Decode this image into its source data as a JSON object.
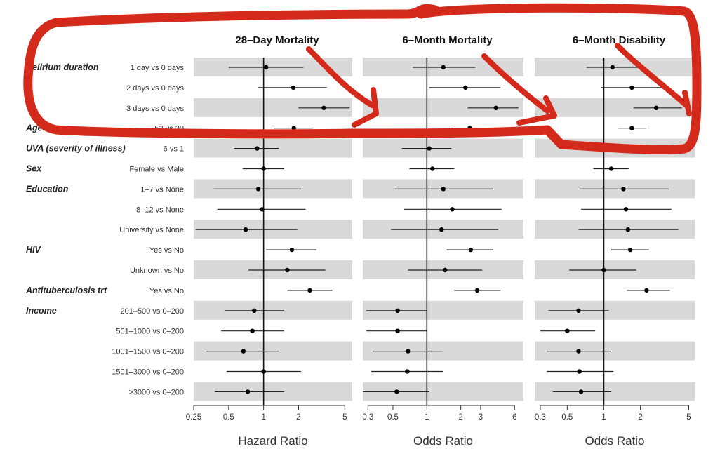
{
  "chart_data": {
    "type": "forest",
    "rows": [
      {
        "variable": "Delirium duration",
        "level": "1 day vs 0 days"
      },
      {
        "variable": "",
        "level": "2 days vs 0 days"
      },
      {
        "variable": "",
        "level": "3 days vs 0 days"
      },
      {
        "variable": "Age",
        "level": "52 vs 30"
      },
      {
        "variable": "UVA (severity of illness)",
        "level": "6 vs 1"
      },
      {
        "variable": "Sex",
        "level": "Female vs Male"
      },
      {
        "variable": "Education",
        "level": "1–7 vs None"
      },
      {
        "variable": "",
        "level": "8–12 vs None"
      },
      {
        "variable": "",
        "level": "University vs None"
      },
      {
        "variable": "HIV",
        "level": "Yes vs No"
      },
      {
        "variable": "",
        "level": "Unknown vs No"
      },
      {
        "variable": "Antituberculosis trt",
        "level": "Yes vs No"
      },
      {
        "variable": "Income",
        "level": "201–500 vs 0–200"
      },
      {
        "variable": "",
        "level": "501–1000 vs 0–200"
      },
      {
        "variable": "",
        "level": "1001–1500 vs 0–200"
      },
      {
        "variable": "",
        "level": "1501–3000 vs 0–200"
      },
      {
        "variable": "",
        "level": ">3000 vs 0–200"
      }
    ],
    "panels": [
      {
        "title": "28–Day Mortality",
        "xlabel": "Hazard Ratio",
        "scale": "log",
        "xlim": [
          0.25,
          5.8
        ],
        "ticks": [
          0.25,
          0.5,
          1,
          2,
          5
        ],
        "tick_labels": [
          "0.25",
          "0.5",
          "1",
          "2",
          "5"
        ],
        "estimates": [
          1.05,
          1.8,
          3.3,
          1.82,
          0.88,
          1.0,
          0.9,
          0.97,
          0.7,
          1.75,
          1.6,
          2.5,
          0.83,
          0.8,
          0.67,
          1.0,
          0.73
        ],
        "lower": [
          0.5,
          0.9,
          2.0,
          1.22,
          0.56,
          0.66,
          0.37,
          0.4,
          0.26,
          1.05,
          0.74,
          1.6,
          0.46,
          0.43,
          0.32,
          0.48,
          0.38
        ],
        "upper": [
          2.2,
          3.5,
          5.5,
          2.65,
          1.35,
          1.5,
          2.1,
          2.3,
          1.95,
          2.85,
          3.4,
          3.9,
          1.5,
          1.5,
          1.35,
          2.1,
          1.5
        ]
      },
      {
        "title": "6–Month Mortality",
        "xlabel": "Odds Ratio",
        "scale": "log",
        "xlim": [
          0.27,
          7.2
        ],
        "ticks": [
          0.3,
          0.5,
          1,
          2,
          3,
          6
        ],
        "tick_labels": [
          "0.3",
          "0.5",
          "1",
          "2",
          "3",
          "6"
        ],
        "estimates": [
          1.4,
          2.2,
          4.1,
          2.4,
          1.05,
          1.12,
          1.4,
          1.68,
          1.35,
          2.45,
          1.45,
          2.8,
          0.55,
          0.55,
          0.68,
          0.67,
          0.54
        ],
        "lower": [
          0.75,
          1.05,
          2.3,
          1.65,
          0.6,
          0.7,
          0.52,
          0.63,
          0.48,
          1.5,
          0.68,
          1.75,
          0.29,
          0.29,
          0.33,
          0.32,
          0.27
        ],
        "upper": [
          2.7,
          4.5,
          6.5,
          3.4,
          1.65,
          1.75,
          3.9,
          4.6,
          4.3,
          3.9,
          3.1,
          4.5,
          1.0,
          1.0,
          1.4,
          1.4,
          1.05
        ]
      },
      {
        "title": "6–Month Disability",
        "xlabel": "Odds Ratio",
        "scale": "log",
        "xlim": [
          0.27,
          5.6
        ],
        "ticks": [
          0.3,
          0.5,
          1,
          2,
          5
        ],
        "tick_labels": [
          "0.3",
          "0.5",
          "1",
          "2",
          "5"
        ],
        "estimates": [
          1.18,
          1.7,
          2.7,
          1.7,
          null,
          1.15,
          1.45,
          1.52,
          1.58,
          1.65,
          1.0,
          2.25,
          0.62,
          0.5,
          0.62,
          0.63,
          0.65
        ],
        "lower": [
          0.72,
          0.95,
          1.75,
          1.3,
          null,
          0.82,
          0.63,
          0.65,
          0.62,
          1.15,
          0.52,
          1.55,
          0.35,
          0.3,
          0.34,
          0.34,
          0.38
        ],
        "upper": [
          1.95,
          3.0,
          4.4,
          2.25,
          null,
          1.6,
          3.4,
          3.6,
          4.1,
          2.35,
          1.85,
          3.5,
          1.1,
          0.85,
          1.15,
          1.2,
          1.15
        ]
      }
    ],
    "row_shading": "alternating light gray bands",
    "reference_line": 1,
    "annotation": {
      "type": "hand-drawn outline and arrows",
      "color": "#d42a1c",
      "rows_highlighted": [
        "Delirium duration"
      ]
    }
  }
}
